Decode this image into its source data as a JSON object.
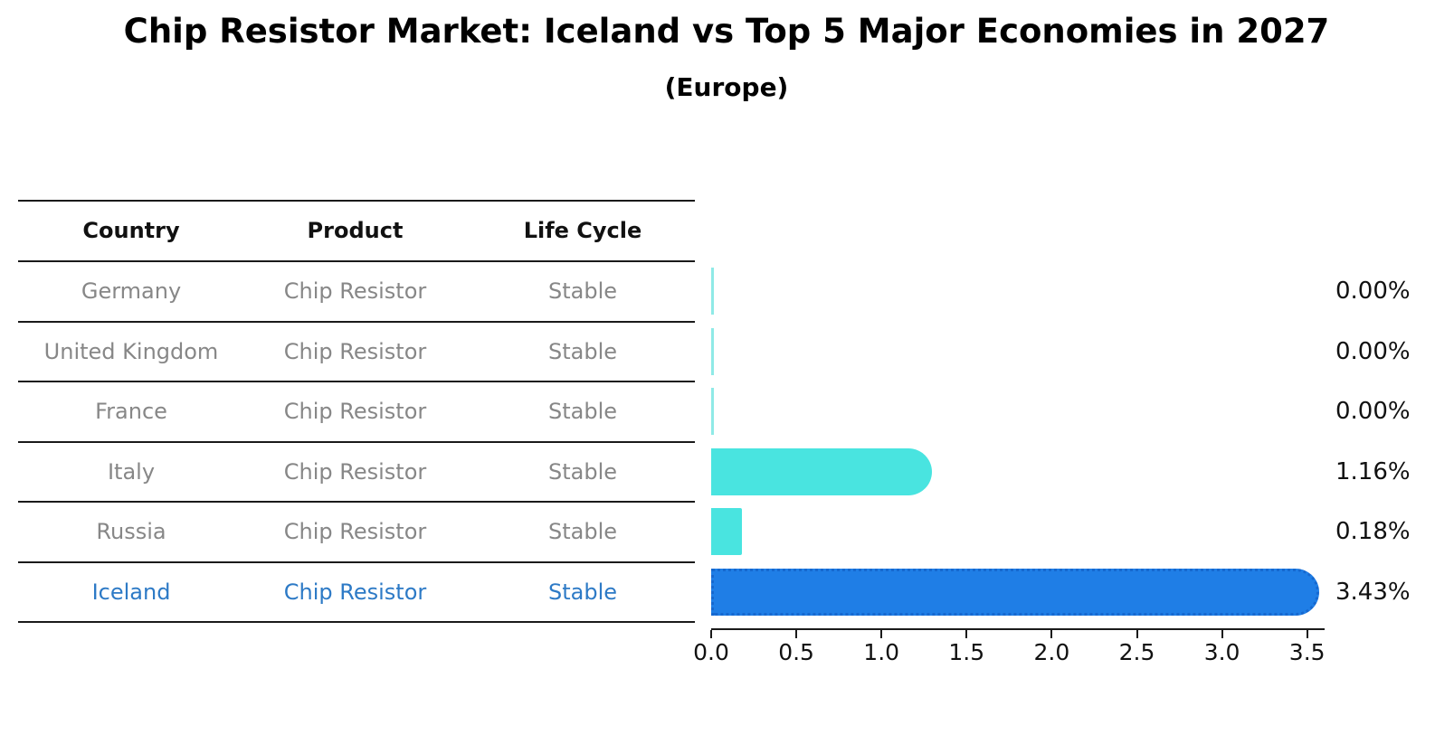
{
  "title": "Chip Resistor Market: Iceland vs Top 5 Major Economies in 2027",
  "subtitle": "(Europe)",
  "table": {
    "headers": {
      "country": "Country",
      "product": "Product",
      "life_cycle": "Life Cycle"
    },
    "rows": [
      {
        "country": "Germany",
        "product": "Chip Resistor",
        "life_cycle": "Stable",
        "highlight": false
      },
      {
        "country": "United Kingdom",
        "product": "Chip Resistor",
        "life_cycle": "Stable",
        "highlight": false
      },
      {
        "country": "France",
        "product": "Chip Resistor",
        "life_cycle": "Stable",
        "highlight": false
      },
      {
        "country": "Italy",
        "product": "Chip Resistor",
        "life_cycle": "Stable",
        "highlight": false
      },
      {
        "country": "Russia",
        "product": "Chip Resistor",
        "life_cycle": "Stable",
        "highlight": false
      },
      {
        "country": "Iceland",
        "product": "Chip Resistor",
        "life_cycle": "Stable",
        "highlight": true
      }
    ]
  },
  "chart_data": {
    "type": "bar",
    "orientation": "horizontal",
    "title": "Chip Resistor Market: Iceland vs Top 5 Major Economies in 2027",
    "subtitle": "(Europe)",
    "categories": [
      "Germany",
      "United Kingdom",
      "France",
      "Italy",
      "Russia",
      "Iceland"
    ],
    "values": [
      0.0,
      0.0,
      0.0,
      1.16,
      0.18,
      3.43
    ],
    "value_labels": [
      "0.00%",
      "0.00%",
      "0.00%",
      "1.16%",
      "0.18%",
      "3.43%"
    ],
    "unit": "percent",
    "xlim": [
      0,
      3.5
    ],
    "x_ticks": [
      "0.0",
      "0.5",
      "1.0",
      "1.5",
      "2.0",
      "2.5",
      "3.0",
      "3.5"
    ],
    "grid": false,
    "legend": false,
    "highlight_category": "Iceland",
    "colors": {
      "bar_default": "#49e4e0",
      "bar_zero_sliver": "#8feae7",
      "bar_highlight": "#1f7ee6",
      "bar_highlight_edge": "#1668cf",
      "row_text": "#878787",
      "highlight_row_text": "#2d7ac6",
      "header_text": "#111111",
      "line": "#1a1a1a"
    }
  }
}
